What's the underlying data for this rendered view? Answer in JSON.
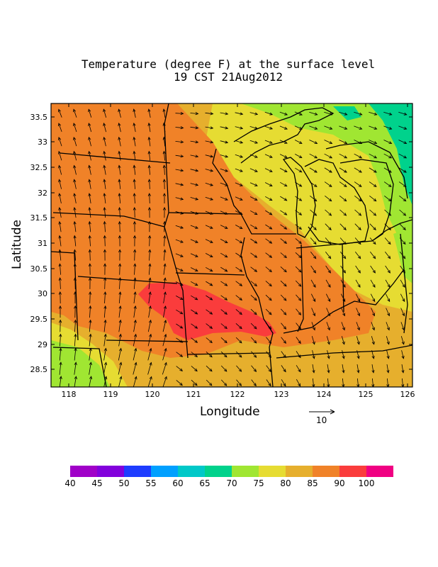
{
  "title": {
    "line1": "Temperature (degree F) at the surface level",
    "line2": "19 CST 21Aug2012"
  },
  "axes": {
    "xlabel": "Longitude",
    "ylabel": "Latitude",
    "xticks": [
      "118",
      "119",
      "120",
      "121",
      "122",
      "123",
      "124",
      "125",
      "126"
    ],
    "yticks": [
      "28.5",
      "29",
      "29.5",
      "30",
      "30.5",
      "31",
      "31.5",
      "32",
      "32.5",
      "33",
      "33.5"
    ]
  },
  "reference_vector": {
    "label": "10"
  },
  "colorbar": {
    "colors": [
      "#a000c8",
      "#8200dc",
      "#1e3cff",
      "#00a0ff",
      "#00c8c8",
      "#00d28c",
      "#a0e632",
      "#e6dc32",
      "#e6af2d",
      "#f08228",
      "#fa3c3c",
      "#f00082"
    ],
    "labels": [
      "40",
      "45",
      "50",
      "55",
      "60",
      "65",
      "70",
      "75",
      "80",
      "85",
      "90",
      "100"
    ]
  },
  "colors": {
    "c70": "#a0e632",
    "c75": "#e6dc32",
    "c80": "#e6af2d",
    "c85": "#f08228",
    "c90": "#fa3c3c",
    "c65": "#00d28c"
  }
}
